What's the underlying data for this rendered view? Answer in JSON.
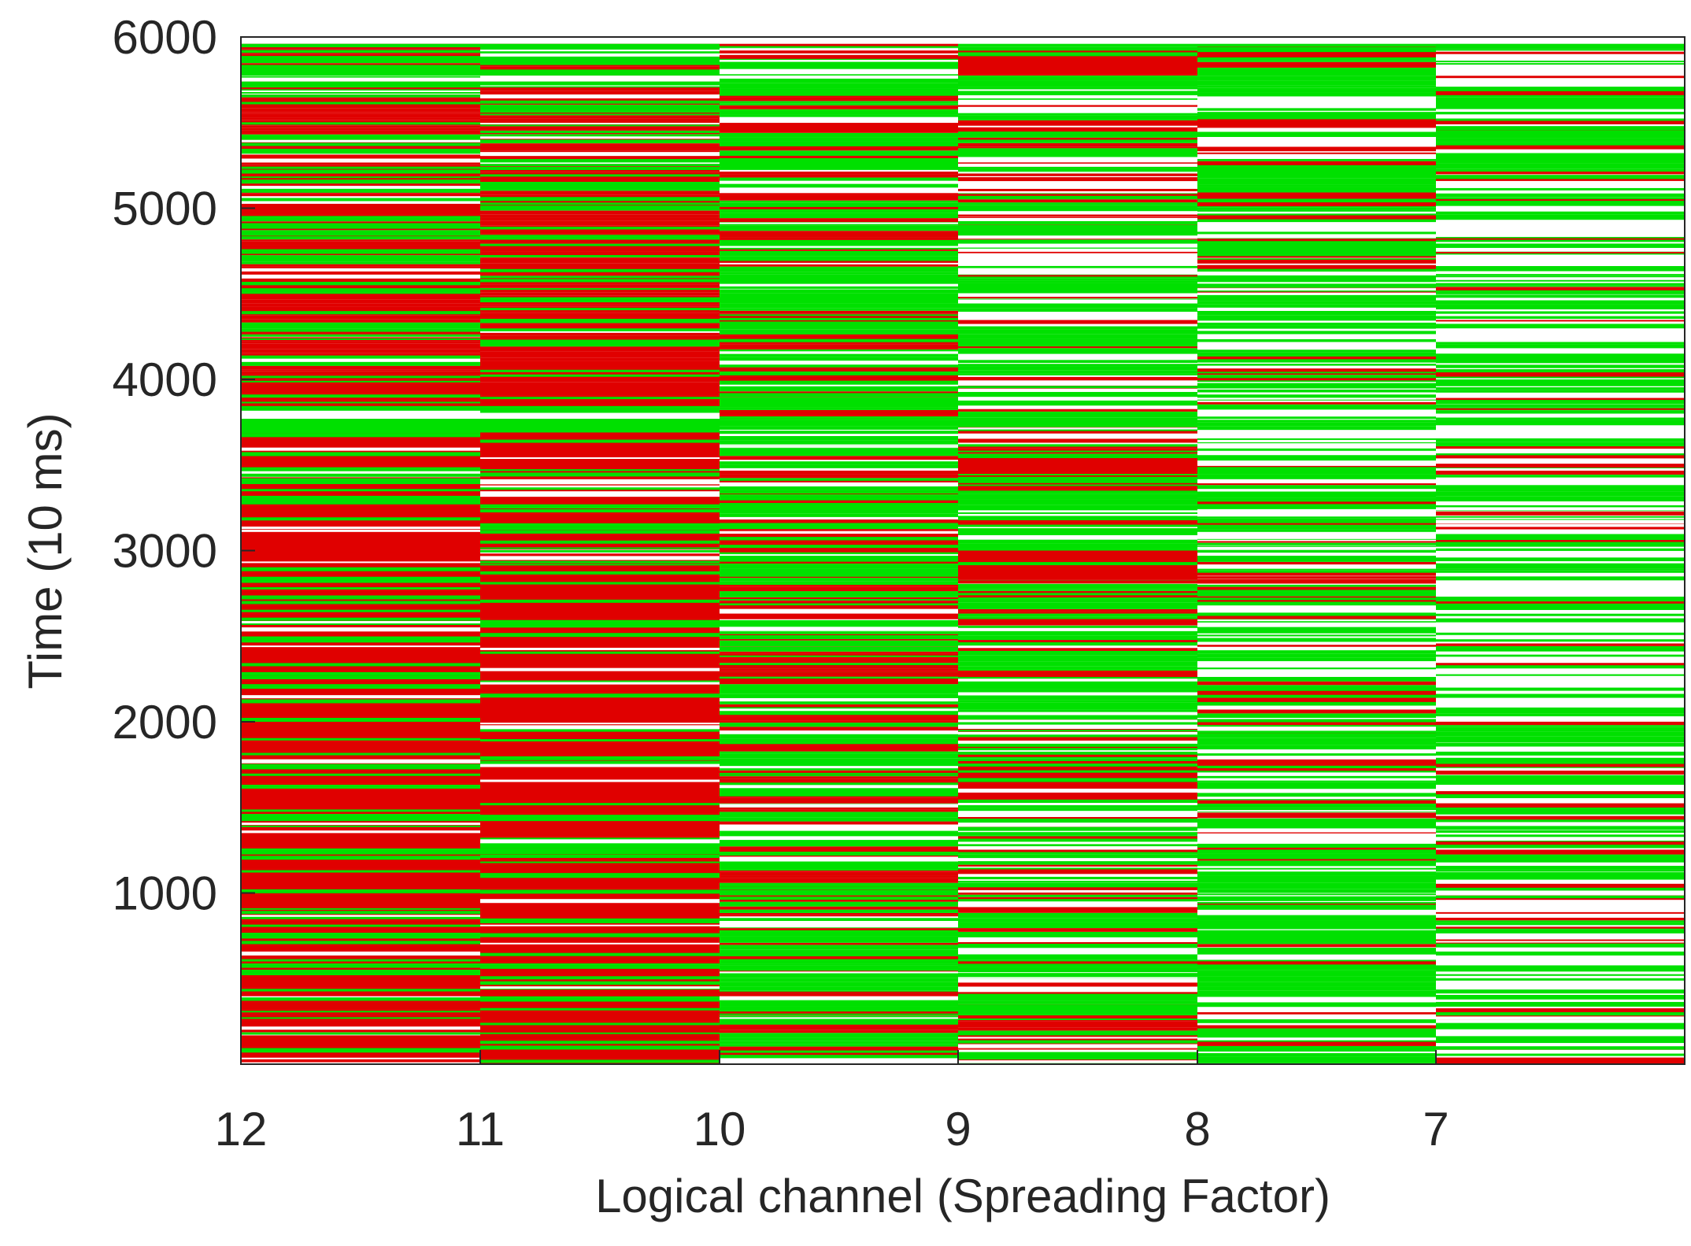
{
  "chart_data": {
    "type": "heatmap",
    "title": "",
    "xlabel": "Logical channel (Spreading Factor)",
    "ylabel": "Time (10 ms)",
    "x_ticks": [
      "12",
      "11",
      "10",
      "9",
      "8",
      "7"
    ],
    "y_ticks": [
      1000,
      2000,
      3000,
      4000,
      5000,
      6000
    ],
    "ylim": [
      0,
      6000
    ],
    "grid": false,
    "legend": "none",
    "colors": {
      "red": "#e00000",
      "green": "#00e000",
      "background": "#ffffff",
      "axis": "#262626"
    },
    "channels": [
      {
        "label": "12",
        "red_level": 0.88,
        "white_level": 0.03,
        "segments": [
          [
            2,
            3690,
            "red"
          ],
          [
            3690,
            3770,
            "green"
          ],
          [
            3770,
            3805,
            "white"
          ],
          [
            3805,
            3845,
            "green"
          ],
          [
            3845,
            3980,
            "red"
          ],
          [
            5705,
            5740,
            "green"
          ],
          [
            5740,
            5775,
            "white"
          ],
          [
            5775,
            5810,
            "green"
          ],
          [
            5940,
            5960,
            "green"
          ],
          [
            1350,
            1365,
            "white"
          ],
          [
            1225,
            1260,
            "green"
          ],
          [
            3270,
            3320,
            "green"
          ],
          [
            3450,
            3480,
            "white"
          ],
          [
            860,
            872,
            "white"
          ],
          [
            425,
            440,
            "green"
          ],
          [
            4550,
            4570,
            "green"
          ],
          [
            4880,
            4900,
            "green"
          ]
        ]
      },
      {
        "label": "11",
        "red_level": 0.9,
        "white_level": 0.02,
        "segments": [
          [
            2,
            3690,
            "red"
          ],
          [
            3690,
            3770,
            "green"
          ],
          [
            3770,
            3805,
            "white"
          ],
          [
            3805,
            3845,
            "green"
          ],
          [
            3845,
            3980,
            "red"
          ],
          [
            5705,
            5740,
            "green"
          ],
          [
            5740,
            5775,
            "white"
          ],
          [
            5775,
            5810,
            "green"
          ],
          [
            5940,
            5960,
            "green"
          ],
          [
            1225,
            1260,
            "green"
          ]
        ]
      },
      {
        "label": "10",
        "red_level": 0.3,
        "white_level": 0.08,
        "segments": [
          [
            1830,
            1870,
            "red"
          ],
          [
            2620,
            2680,
            "red"
          ],
          [
            2990,
            3060,
            "red"
          ],
          [
            4000,
            4060,
            "red"
          ],
          [
            5450,
            5520,
            "red"
          ],
          [
            5080,
            5120,
            "white"
          ],
          [
            1310,
            1330,
            "white"
          ],
          [
            1500,
            1520,
            "white"
          ],
          [
            5740,
            5775,
            "white"
          ]
        ]
      },
      {
        "label": "9",
        "red_level": 0.22,
        "white_level": 0.2,
        "segments": [
          [
            1550,
            1750,
            "red"
          ],
          [
            2830,
            3000,
            "red"
          ],
          [
            3350,
            3540,
            "red"
          ],
          [
            5780,
            5900,
            "red"
          ],
          [
            5,
            45,
            "green"
          ],
          [
            5300,
            5350,
            "green"
          ]
        ]
      },
      {
        "label": "8",
        "red_level": 0.14,
        "white_level": 0.3,
        "segments": [
          [
            4720,
            4800,
            "green"
          ],
          [
            5200,
            5260,
            "green"
          ],
          [
            1720,
            1780,
            "red"
          ],
          [
            5470,
            5520,
            "red"
          ],
          [
            5,
            45,
            "green"
          ]
        ]
      },
      {
        "label": "7",
        "red_level": 0.06,
        "white_level": 0.55,
        "segments": [
          [
            1730,
            1780,
            "green"
          ],
          [
            3960,
            4000,
            "green"
          ],
          [
            5270,
            5310,
            "green"
          ],
          [
            3880,
            3900,
            "red"
          ],
          [
            5490,
            5510,
            "red"
          ],
          [
            4520,
            4540,
            "red"
          ]
        ]
      }
    ]
  }
}
